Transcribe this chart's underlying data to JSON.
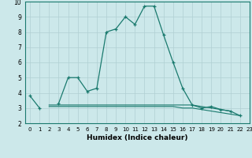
{
  "xlabel": "Humidex (Indice chaleur)",
  "x": [
    0,
    1,
    2,
    3,
    4,
    5,
    6,
    7,
    8,
    9,
    10,
    11,
    12,
    13,
    14,
    15,
    16,
    17,
    18,
    19,
    20,
    21,
    22,
    23
  ],
  "line1": [
    3.8,
    3.0,
    null,
    3.3,
    5.0,
    5.0,
    4.1,
    4.3,
    8.0,
    8.2,
    9.0,
    8.5,
    9.7,
    9.7,
    7.8,
    6.0,
    4.3,
    3.2,
    3.0,
    3.1,
    2.9,
    2.8,
    2.5,
    null
  ],
  "line2": [
    null,
    null,
    3.1,
    3.1,
    3.1,
    3.1,
    3.1,
    3.1,
    3.1,
    3.1,
    3.1,
    3.1,
    3.1,
    3.1,
    3.1,
    3.1,
    3.0,
    3.0,
    2.9,
    2.8,
    2.7,
    2.6,
    2.5,
    null
  ],
  "line3": [
    null,
    null,
    3.2,
    3.2,
    3.2,
    3.2,
    3.2,
    3.2,
    3.2,
    3.2,
    3.2,
    3.2,
    3.2,
    3.2,
    3.2,
    3.2,
    3.2,
    3.2,
    3.1,
    3.0,
    2.9,
    2.8,
    null,
    null
  ],
  "line_color": "#1a7a6e",
  "bg_color": "#cce8ea",
  "grid_color": "#b0cfd2",
  "xlim": [
    -0.5,
    23
  ],
  "ylim": [
    2,
    10
  ],
  "yticks": [
    2,
    3,
    4,
    5,
    6,
    7,
    8,
    9,
    10
  ],
  "xticks": [
    0,
    1,
    2,
    3,
    4,
    5,
    6,
    7,
    8,
    9,
    10,
    11,
    12,
    13,
    14,
    15,
    16,
    17,
    18,
    19,
    20,
    21,
    22,
    23
  ]
}
